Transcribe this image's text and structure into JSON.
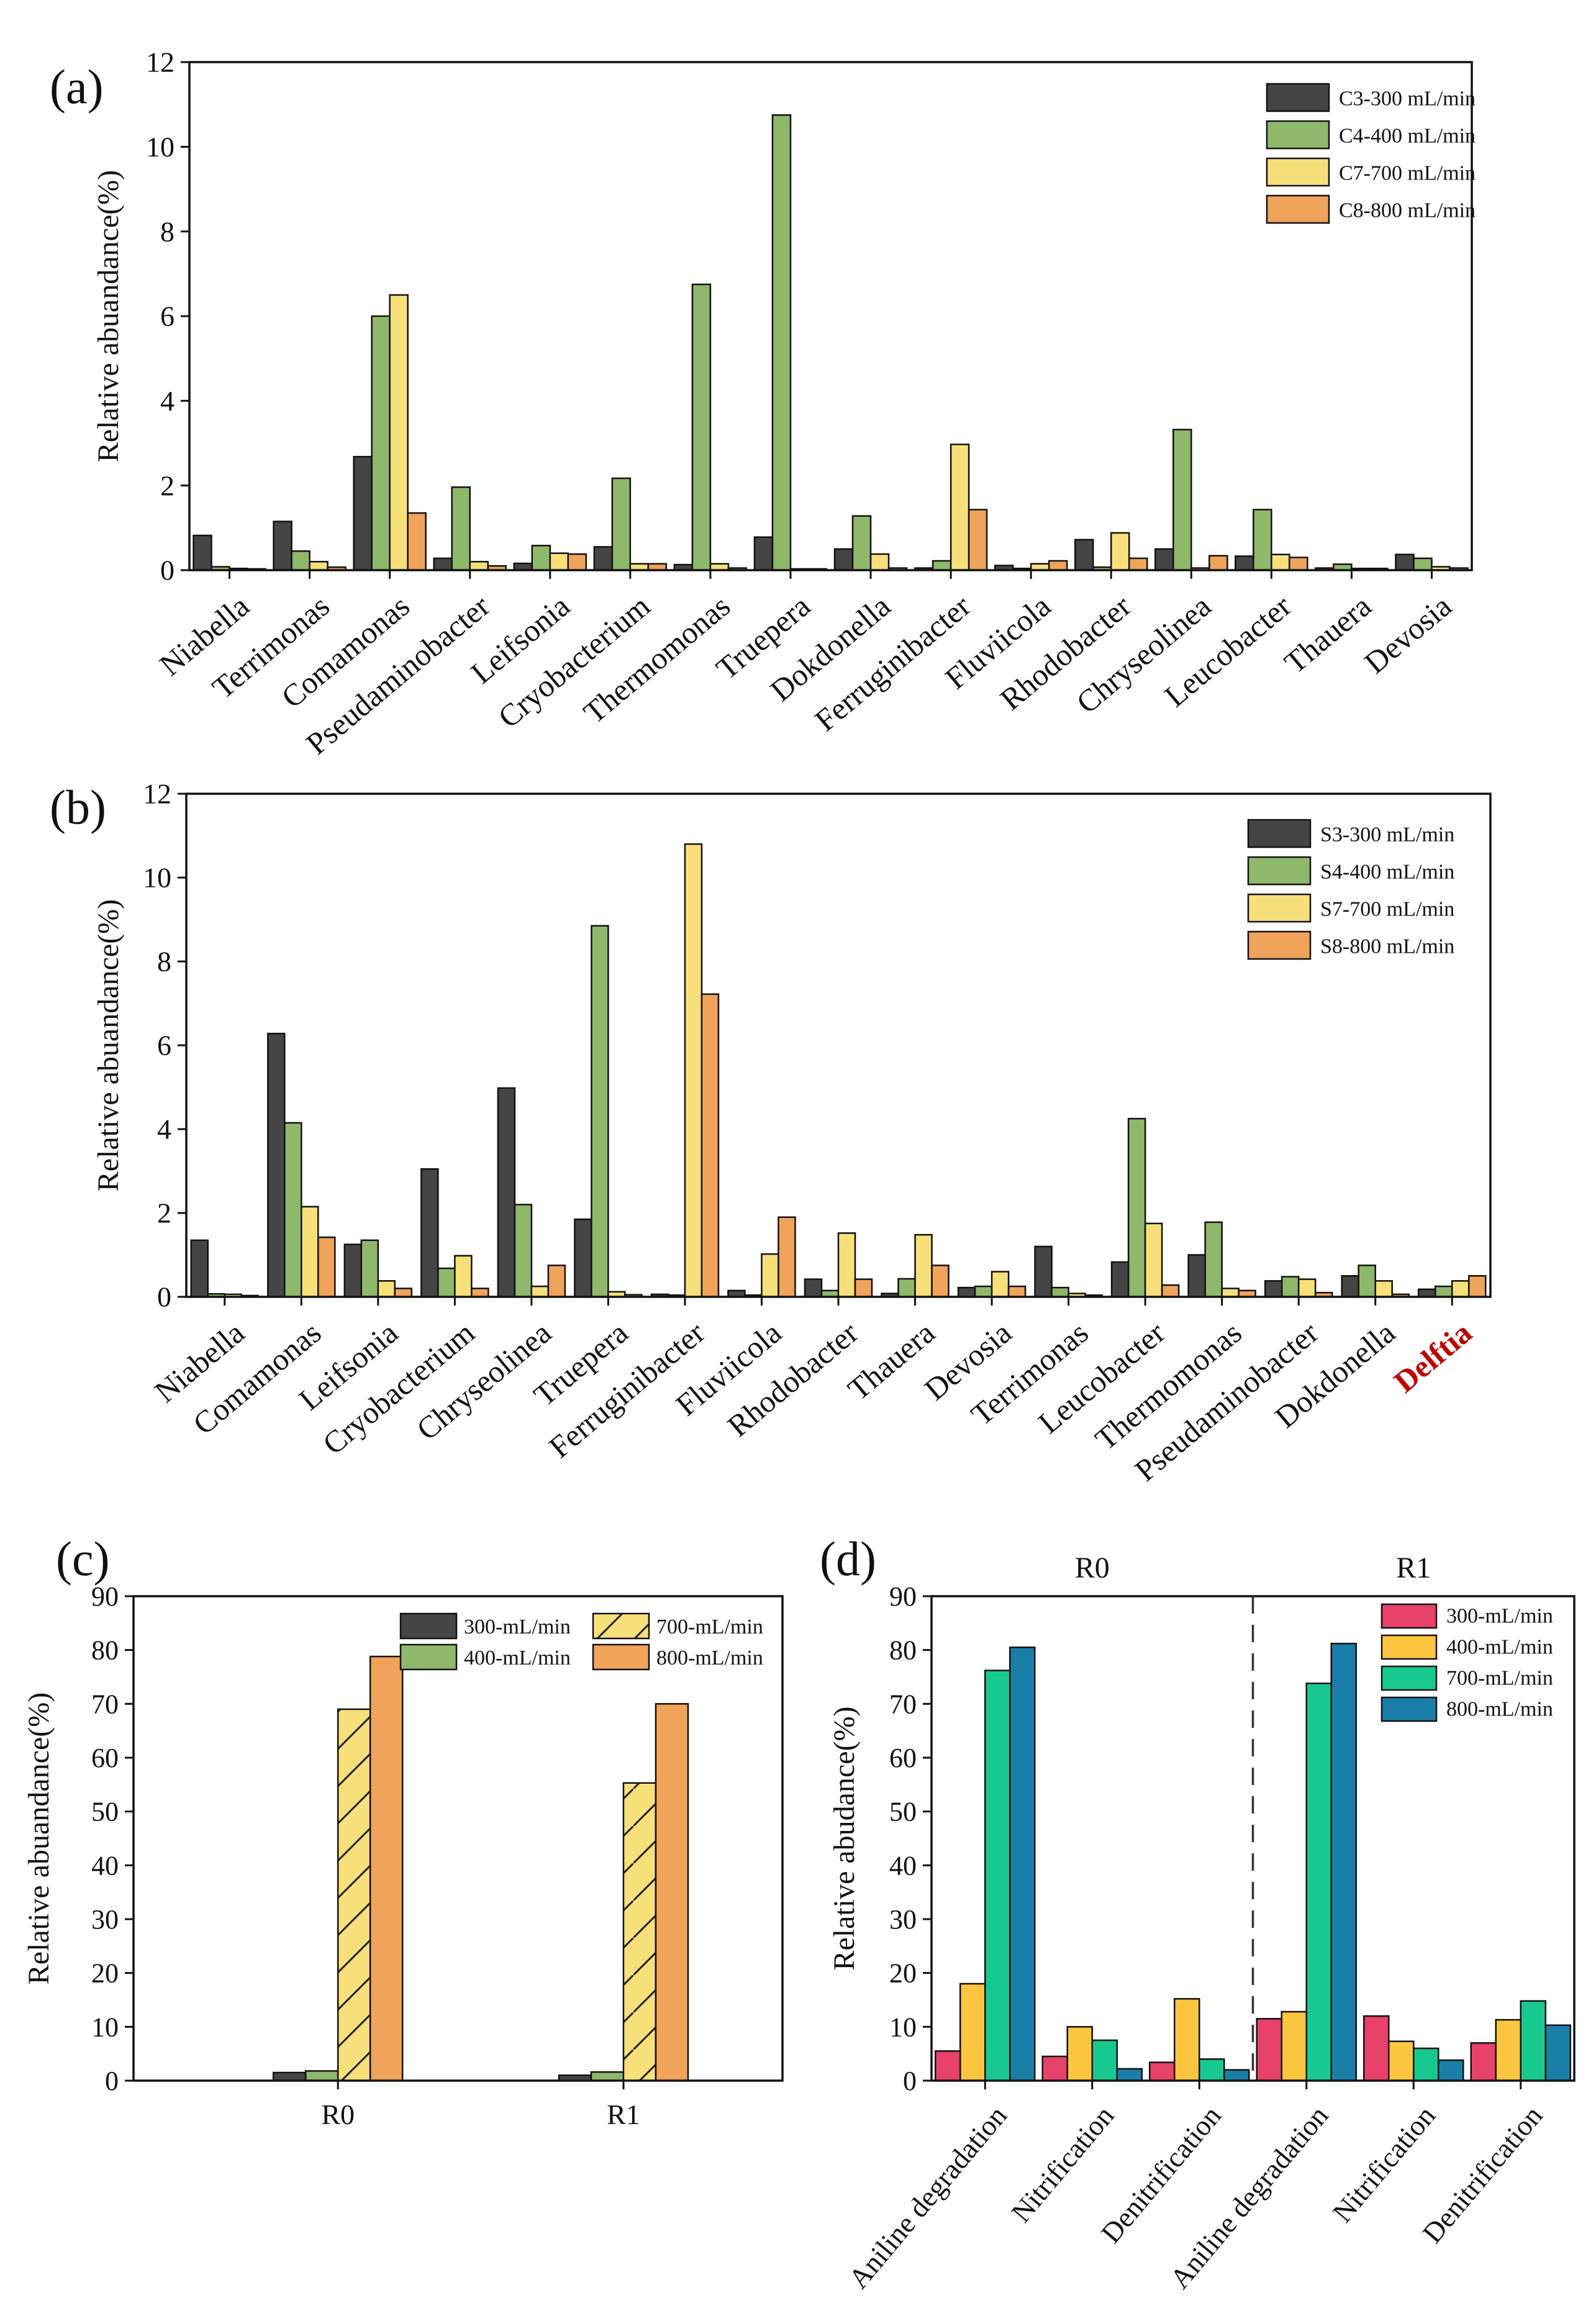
{
  "chart_data": [
    {
      "panel": "(a)",
      "type": "bar",
      "title": "",
      "xlabel": "",
      "ylabel": "Relative abuandance(%)",
      "ylim": [
        0,
        12
      ],
      "yticks": [
        "0",
        "2",
        "4",
        "6",
        "8",
        "10",
        "12"
      ],
      "legend_position": "top-right",
      "categories": [
        "Niabella",
        "Terrimonas",
        "Comamonas",
        "Pseudaminobacter",
        "Leifsonia",
        "Cryobacterium",
        "Thermomonas",
        "Truepera",
        "Dokdonella",
        "Ferruginibacter",
        "Fluviicola",
        "Rhodobacter",
        "Chryseolinea",
        "Leucobacter",
        "Thauera",
        "Devosia"
      ],
      "series": [
        {
          "name": "C3-300 mL/min",
          "color": "#454545",
          "hatch": false,
          "values": [
            0.82,
            1.15,
            2.68,
            0.28,
            0.16,
            0.55,
            0.13,
            0.78,
            0.5,
            0.05,
            0.11,
            0.72,
            0.5,
            0.33,
            0.05,
            0.37
          ]
        },
        {
          "name": "C4-400 mL/min",
          "color": "#8fb86b",
          "hatch": false,
          "values": [
            0.08,
            0.45,
            6.0,
            1.96,
            0.58,
            2.17,
            6.75,
            10.75,
            1.28,
            0.22,
            0.04,
            0.07,
            3.32,
            1.43,
            0.14,
            0.28
          ]
        },
        {
          "name": "C7-700 mL/min",
          "color": "#f7e07a",
          "hatch": false,
          "values": [
            0.04,
            0.2,
            6.5,
            0.2,
            0.4,
            0.15,
            0.15,
            0.03,
            0.38,
            2.97,
            0.15,
            0.88,
            0.05,
            0.37,
            0.04,
            0.08
          ]
        },
        {
          "name": "C8-800 mL/min",
          "color": "#f0a35a",
          "hatch": false,
          "values": [
            0.03,
            0.07,
            1.35,
            0.1,
            0.38,
            0.15,
            0.05,
            0.03,
            0.05,
            1.43,
            0.22,
            0.28,
            0.34,
            0.3,
            0.04,
            0.05
          ]
        }
      ]
    },
    {
      "panel": "(b)",
      "type": "bar",
      "title": "",
      "xlabel": "",
      "ylabel": "Relative abuandance(%)",
      "ylim": [
        0,
        12
      ],
      "yticks": [
        "0",
        "2",
        "4",
        "6",
        "8",
        "10",
        "12"
      ],
      "legend_position": "top-right",
      "categories": [
        "Niabella",
        "Comamonas",
        "Leifsonia",
        "Cryobacterium",
        "Chryseolinea",
        "Truepera",
        "Ferruginibacter",
        "Fluviicola",
        "Rhodobacter",
        "Thauera",
        "Devosia",
        "Terrimonas",
        "Leucobacter",
        "Thermomonas",
        "Pseudaminobacter",
        "Dokdonella",
        "Delftia"
      ],
      "highlight_category": "Delftia",
      "highlight_color": "#c00000",
      "series": [
        {
          "name": "S3-300 mL/min",
          "color": "#454545",
          "hatch": false,
          "values": [
            1.35,
            6.28,
            1.25,
            3.05,
            4.98,
            1.85,
            0.06,
            0.15,
            0.42,
            0.08,
            0.22,
            1.2,
            0.83,
            1.0,
            0.38,
            0.5,
            0.18
          ]
        },
        {
          "name": "S4-400 mL/min",
          "color": "#8fb86b",
          "hatch": false,
          "values": [
            0.07,
            4.15,
            1.35,
            0.68,
            2.2,
            8.85,
            0.04,
            0.04,
            0.15,
            0.43,
            0.25,
            0.22,
            4.25,
            1.78,
            0.48,
            0.75,
            0.25
          ]
        },
        {
          "name": "S7-700 mL/min",
          "color": "#f7e07a",
          "hatch": false,
          "values": [
            0.06,
            2.15,
            0.38,
            0.98,
            0.25,
            0.12,
            10.8,
            1.02,
            1.52,
            1.48,
            0.6,
            0.08,
            1.75,
            0.2,
            0.42,
            0.38,
            0.38
          ]
        },
        {
          "name": "S8-800 mL/min",
          "color": "#f0a35a",
          "hatch": false,
          "values": [
            0.03,
            1.42,
            0.2,
            0.2,
            0.75,
            0.05,
            7.22,
            1.9,
            0.42,
            0.75,
            0.25,
            0.04,
            0.28,
            0.15,
            0.1,
            0.06,
            0.5
          ]
        }
      ]
    },
    {
      "panel": "(c)",
      "type": "bar",
      "title": "",
      "xlabel": "",
      "ylabel": "Relative abuandance(%)",
      "ylim": [
        0,
        90
      ],
      "yticks": [
        "0",
        "10",
        "20",
        "30",
        "40",
        "50",
        "60",
        "70",
        "80",
        "90"
      ],
      "legend_position": "top-right",
      "categories": [
        "R0",
        "R1"
      ],
      "series": [
        {
          "name": "300-mL/min",
          "color": "#454545",
          "hatch": false,
          "values": [
            1.5,
            1.0
          ]
        },
        {
          "name": "400-mL/min",
          "color": "#8fb86b",
          "hatch": false,
          "values": [
            1.8,
            1.6
          ]
        },
        {
          "name": "700-mL/min",
          "color": "#f7e07a",
          "hatch": true,
          "values": [
            69.0,
            55.3
          ]
        },
        {
          "name": "800-mL/min",
          "color": "#f0a35a",
          "hatch": false,
          "values": [
            78.8,
            70.0
          ]
        }
      ]
    },
    {
      "panel": "(d)",
      "type": "bar",
      "title": "",
      "xlabel": "",
      "ylabel": "Relative abudance(%)",
      "ylim": [
        0,
        90
      ],
      "yticks": [
        "0",
        "10",
        "20",
        "30",
        "40",
        "50",
        "60",
        "70",
        "80",
        "90"
      ],
      "legend_position": "top-right",
      "group_labels": [
        "R0",
        "R1"
      ],
      "categories": [
        "Aniline degradation",
        "Nitrification",
        "Denitrification",
        "Aniline degradation",
        "Nitrification",
        "Denitrification"
      ],
      "series": [
        {
          "name": "300-mL/min",
          "color": "#e8416a",
          "hatch": false,
          "values": [
            5.5,
            4.5,
            3.4,
            11.5,
            12.0,
            7.0
          ]
        },
        {
          "name": "400-mL/min",
          "color": "#fbc53f",
          "hatch": false,
          "values": [
            18.0,
            10.0,
            15.2,
            12.8,
            7.3,
            11.3
          ]
        },
        {
          "name": "700-mL/min",
          "color": "#17c98f",
          "hatch": false,
          "values": [
            76.2,
            7.5,
            4.0,
            73.8,
            6.0,
            14.8
          ]
        },
        {
          "name": "800-mL/min",
          "color": "#1a7fa8",
          "hatch": false,
          "values": [
            80.5,
            2.2,
            2.0,
            81.2,
            3.8,
            10.3
          ]
        }
      ]
    }
  ]
}
